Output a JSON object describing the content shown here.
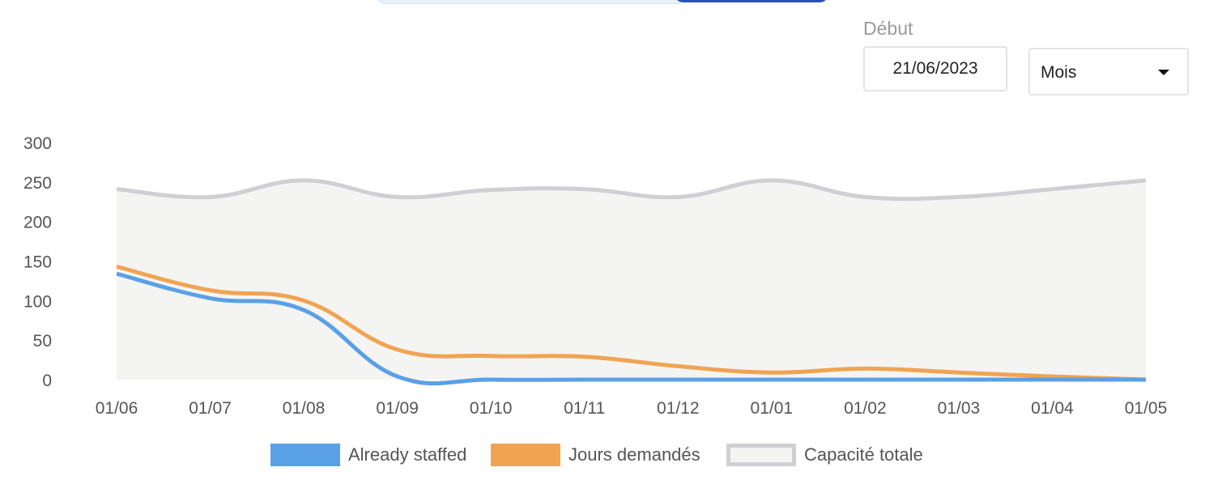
{
  "filters": {
    "start_label": "Début",
    "start_value": "21/06/2023",
    "period_select": "Mois"
  },
  "colors": {
    "already_staffed": "#5aa0e6",
    "jours_demandes": "#f0a452",
    "capacite_line": "#cfcfd4",
    "capacite_fill": "#f4f4f3"
  },
  "chart_data": {
    "type": "line",
    "categories": [
      "01/06",
      "01/07",
      "01/08",
      "01/09",
      "01/10",
      "01/11",
      "01/12",
      "01/01",
      "01/02",
      "01/03",
      "01/04",
      "01/05"
    ],
    "ylim": [
      0,
      300
    ],
    "yticks": [
      300,
      250,
      200,
      150,
      100,
      50,
      0
    ],
    "grid": false,
    "legend_position": "bottom",
    "series": [
      {
        "name": "Already staffed",
        "key": "already_staffed",
        "values": [
          134,
          103,
          88,
          4,
          0,
          0,
          0,
          0,
          0,
          0,
          0,
          0
        ]
      },
      {
        "name": "Jours demandés",
        "key": "jours_demandes",
        "values": [
          143,
          113,
          100,
          38,
          30,
          29,
          17,
          9,
          14,
          9,
          4,
          0
        ]
      },
      {
        "name": "Capacité totale",
        "key": "capacite",
        "values": [
          241,
          231,
          252,
          231,
          240,
          241,
          231,
          252,
          231,
          231,
          241,
          252
        ]
      }
    ]
  }
}
